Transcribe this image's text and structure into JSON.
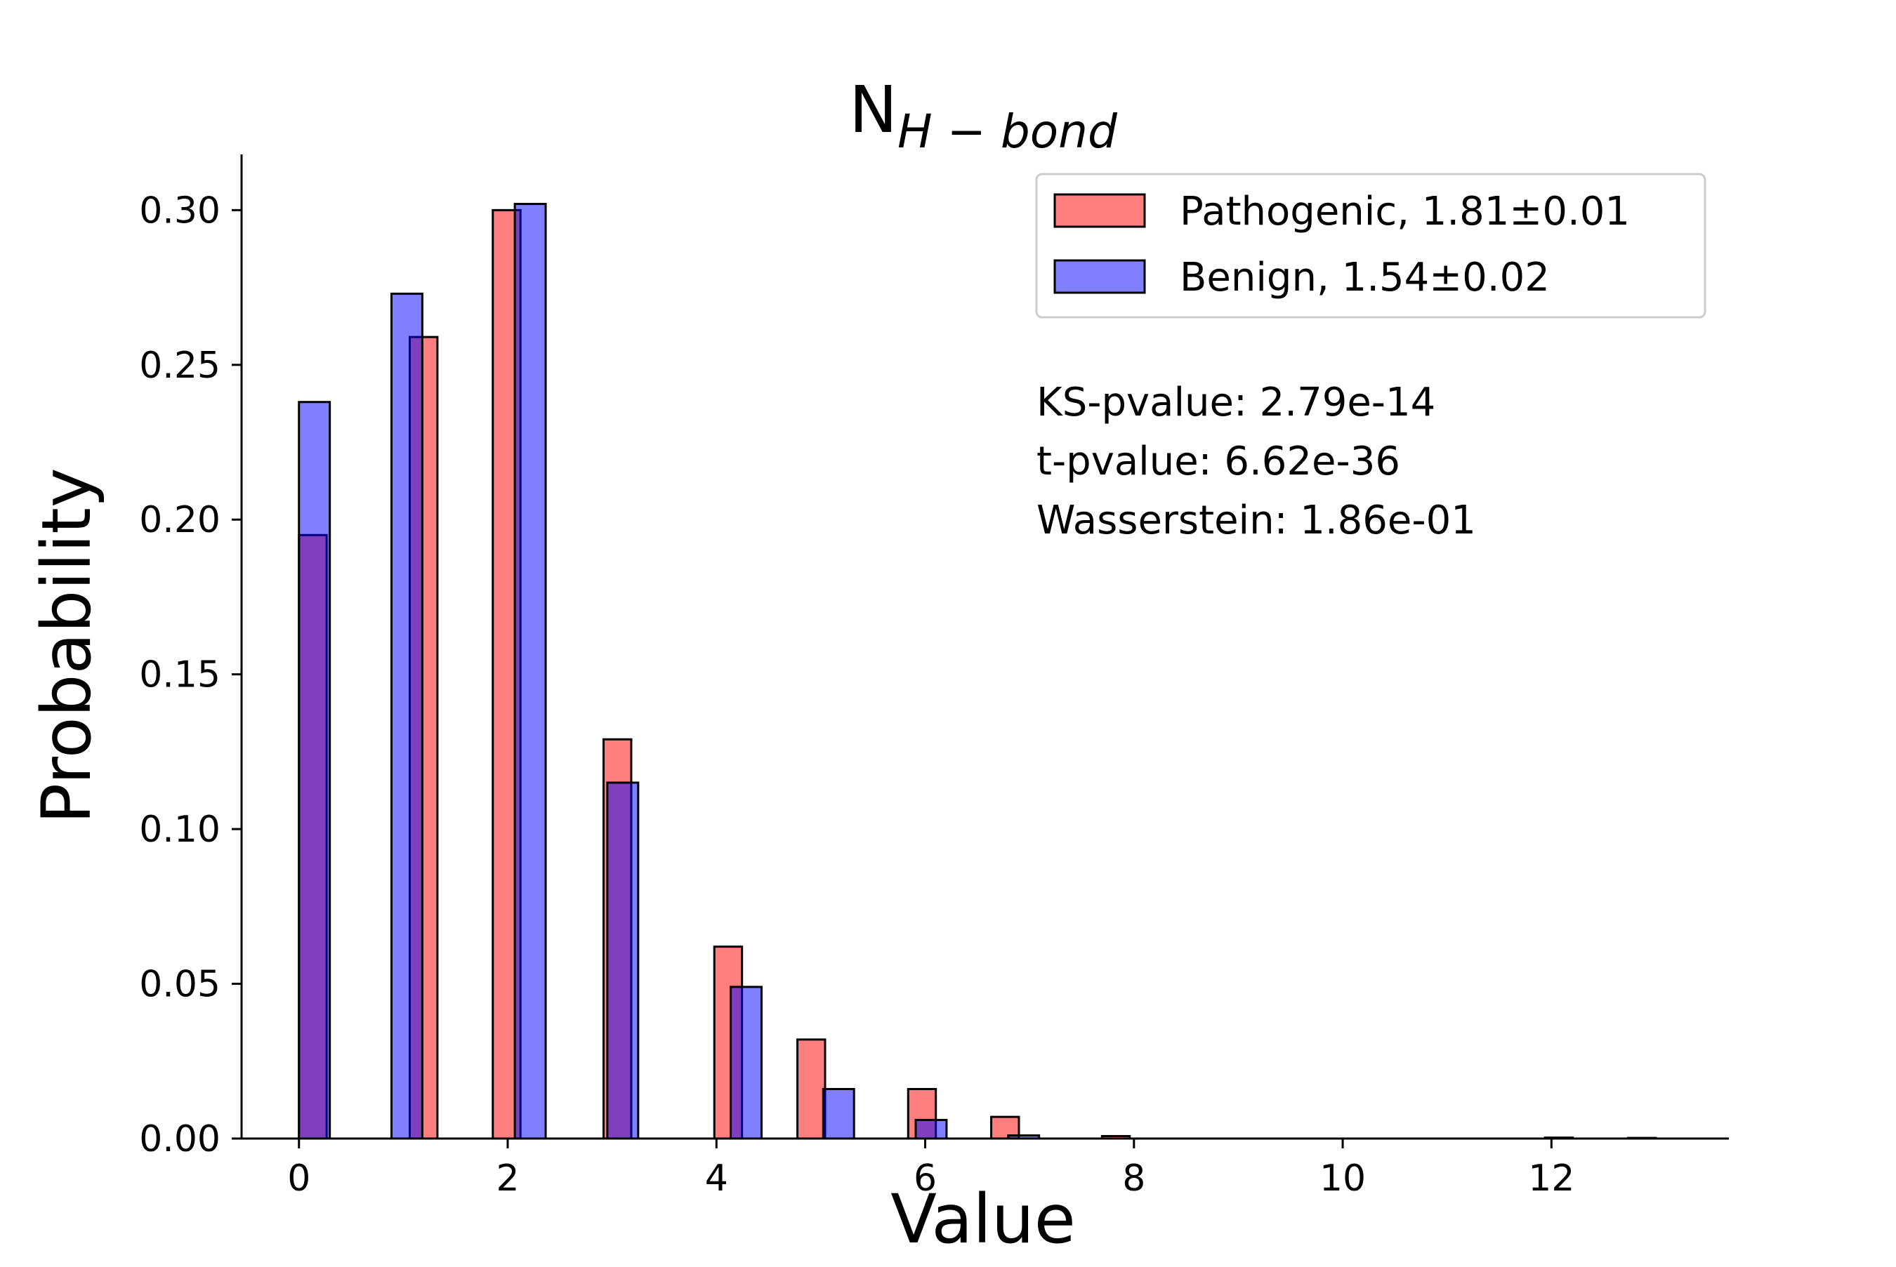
{
  "chart_data": {
    "type": "bar",
    "title": {
      "main": "N",
      "subscript": "H − bond"
    },
    "xlabel": "Value",
    "ylabel": "Probability",
    "xlim": [
      -0.55,
      13.7
    ],
    "ylim": [
      0,
      0.318
    ],
    "xticks": [
      0,
      2,
      4,
      6,
      8,
      10,
      12
    ],
    "yticks": [
      "0.00",
      "0.05",
      "0.10",
      "0.15",
      "0.20",
      "0.25",
      "0.30"
    ],
    "grid": false,
    "legend_position": "top-right",
    "series": [
      {
        "name": "Pathogenic, 1.81±0.01",
        "color": "#ff0000",
        "alpha": 0.5,
        "bar_range": [
          0.0,
          13.0
        ],
        "bins": 49,
        "values": [
          0.195,
          0,
          0,
          0,
          0.259,
          0,
          0,
          0.3,
          0,
          0,
          0,
          0.129,
          0,
          0,
          0,
          0.062,
          0,
          0,
          0.032,
          0,
          0,
          0,
          0.016,
          0,
          0,
          0.007,
          0,
          0,
          0,
          0.0008,
          0,
          0,
          0,
          0,
          0,
          0,
          0,
          0,
          0,
          0,
          0,
          0,
          0,
          0,
          0,
          0.0003,
          0,
          0,
          0.0002
        ]
      },
      {
        "name": "Benign, 1.54±0.02",
        "color": "#0000ff",
        "alpha": 0.5,
        "bar_range": [
          0.0,
          13.0
        ],
        "bins": 44,
        "values": [
          0.238,
          0,
          0,
          0.273,
          0,
          0,
          0,
          0.302,
          0,
          0,
          0.115,
          0,
          0,
          0,
          0.049,
          0,
          0,
          0.016,
          0,
          0,
          0.006,
          0,
          0,
          0.001,
          0,
          0,
          0,
          0,
          0,
          0,
          0,
          0,
          0,
          0,
          0,
          0,
          0,
          0,
          0,
          0,
          0,
          0,
          0,
          0
        ]
      }
    ],
    "annotations": [
      "KS-pvalue: 2.79e-14",
      "t-pvalue: 6.62e-36",
      "Wasserstein: 1.86e-01"
    ]
  }
}
